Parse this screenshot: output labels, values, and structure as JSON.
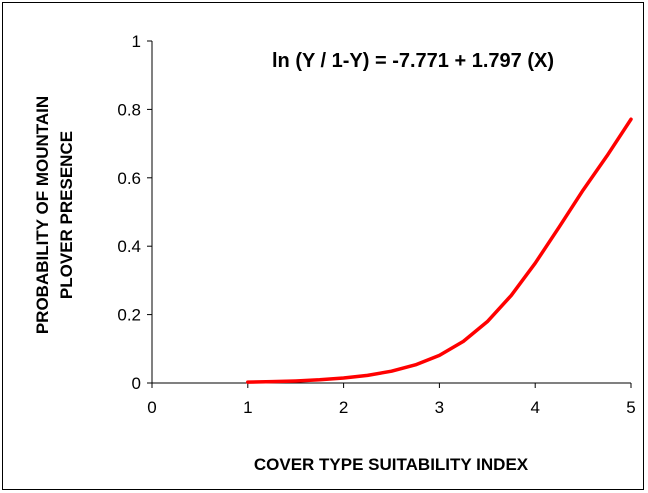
{
  "chart_data": {
    "type": "line",
    "title": "",
    "annotation": "ln (Y / 1-Y) = -7.771 + 1.797 (X)",
    "xlabel": "COVER TYPE SUITABILITY INDEX",
    "ylabel_lines": [
      "PROBABILITY OF MOUNTAIN",
      "PLOVER PRESENCE"
    ],
    "xlim": [
      0,
      5
    ],
    "ylim": [
      0,
      1
    ],
    "x_ticks": [
      "0",
      "1",
      "2",
      "3",
      "4",
      "5"
    ],
    "y_ticks": [
      "0",
      "0.2",
      "0.4",
      "0.6",
      "0.8",
      "1"
    ],
    "grid": false,
    "series": [
      {
        "color": "#ff0000",
        "x": [
          1.0,
          1.25,
          1.5,
          1.75,
          2.0,
          2.25,
          2.5,
          2.75,
          3.0,
          3.25,
          3.5,
          3.75,
          4.0,
          4.25,
          4.5,
          4.75,
          5.0
        ],
        "y": [
          0.0025,
          0.0039,
          0.006,
          0.0094,
          0.0145,
          0.0224,
          0.0345,
          0.053,
          0.0809,
          0.1217,
          0.1794,
          0.2561,
          0.3503,
          0.456,
          0.564,
          0.6644,
          0.7712
        ]
      }
    ]
  }
}
